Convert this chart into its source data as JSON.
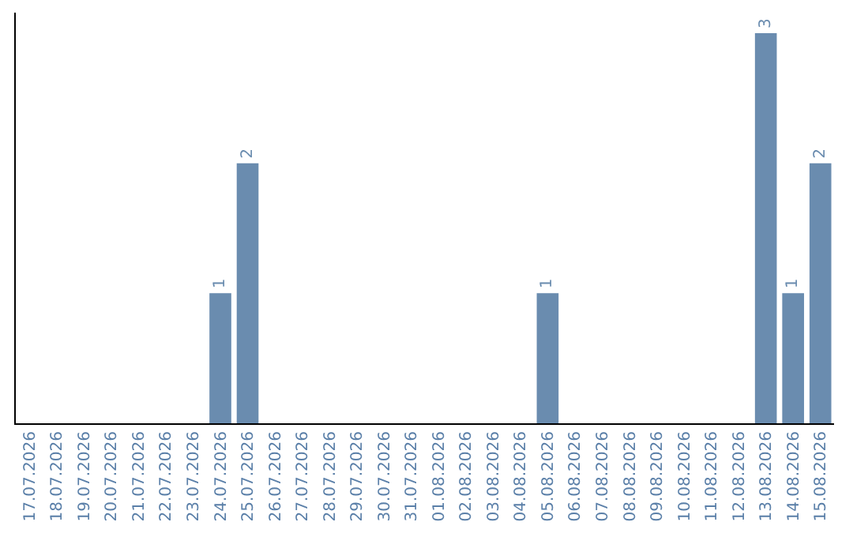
{
  "chart_data": {
    "type": "bar",
    "categories": [
      "17.07.2026",
      "18.07.2026",
      "19.07.2026",
      "20.07.2026",
      "21.07.2026",
      "22.07.2026",
      "23.07.2026",
      "24.07.2026",
      "25.07.2026",
      "26.07.2026",
      "27.07.2026",
      "28.07.2026",
      "29.07.2026",
      "30.07.2026",
      "31.07.2026",
      "01.08.2026",
      "02.08.2026",
      "03.08.2026",
      "04.08.2026",
      "05.08.2026",
      "06.08.2026",
      "07.08.2026",
      "08.08.2026",
      "09.08.2026",
      "10.08.2026",
      "11.08.2026",
      "12.08.2026",
      "13.08.2026",
      "14.08.2026",
      "15.08.2026"
    ],
    "values": [
      0,
      0,
      0,
      0,
      0,
      0,
      0,
      1,
      2,
      0,
      0,
      0,
      0,
      0,
      0,
      0,
      0,
      0,
      0,
      1,
      0,
      0,
      0,
      0,
      0,
      0,
      0,
      3,
      1,
      2
    ],
    "value_labels": [
      null,
      null,
      null,
      null,
      null,
      null,
      null,
      "1",
      "2",
      null,
      null,
      null,
      null,
      null,
      null,
      null,
      null,
      null,
      null,
      "1",
      null,
      null,
      null,
      null,
      null,
      null,
      null,
      "3",
      "1",
      "2"
    ],
    "color": "#6a8caf",
    "tick_labels": "x"
  }
}
